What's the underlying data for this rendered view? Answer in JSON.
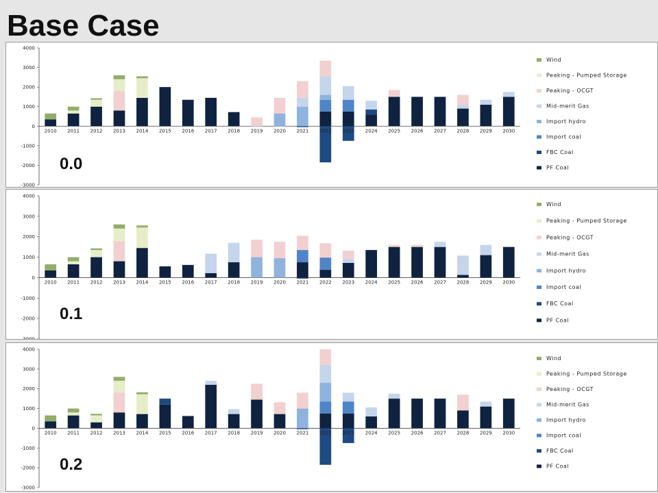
{
  "title": "Base Case",
  "colors": {
    "Wind": "#93ad6a",
    "Peaking - Pumped Storage": "#e6edc8",
    "Peaking - OCGT": "#f2d0d0",
    "Mid-merit Gas": "#c5d5ec",
    "Import hydro": "#8fb3dd",
    "Import coal": "#4f84c9",
    "FBC Coal": "#1e4a83",
    "PF Coal": "#0f2340"
  },
  "chart_data": [
    {
      "type": "bar",
      "label": "0.0",
      "categories": [
        "2010",
        "2011",
        "2012",
        "2013",
        "2014",
        "2015",
        "2016",
        "2017",
        "2018",
        "2019",
        "2020",
        "2021",
        "2022",
        "2023",
        "2024",
        "2025",
        "2026",
        "2027",
        "2028",
        "2029",
        "2030"
      ],
      "ylim": [
        -3000,
        4000
      ],
      "yticks": [
        -3000,
        -2000,
        -1000,
        0,
        1000,
        2000,
        3000,
        4000
      ],
      "legend": [
        "Wind",
        "Peaking - Pumped Storage",
        "Peaking - OCGT",
        "Mid-merit Gas",
        "Import hydro",
        "Import coal",
        "FBC Coal",
        "PF Coal"
      ],
      "series": [
        {
          "name": "PF Coal",
          "values": [
            350,
            650,
            1000,
            800,
            1450,
            2000,
            1350,
            1450,
            720,
            0,
            0,
            0,
            750,
            750,
            600,
            1500,
            1500,
            1500,
            900,
            1100,
            1500
          ]
        },
        {
          "name": "FBC Coal",
          "values": [
            0,
            0,
            0,
            0,
            0,
            0,
            0,
            0,
            0,
            0,
            0,
            -50,
            -1850,
            -750,
            250,
            0,
            0,
            0,
            0,
            0,
            0
          ]
        },
        {
          "name": "Import coal",
          "values": [
            0,
            0,
            0,
            0,
            0,
            0,
            0,
            0,
            0,
            0,
            0,
            0,
            600,
            600,
            0,
            0,
            0,
            0,
            0,
            0,
            0
          ]
        },
        {
          "name": "Import hydro",
          "values": [
            0,
            0,
            0,
            0,
            0,
            0,
            0,
            0,
            0,
            0,
            650,
            1000,
            250,
            0,
            0,
            0,
            0,
            0,
            0,
            0,
            0
          ]
        },
        {
          "name": "Mid-merit Gas",
          "values": [
            0,
            0,
            0,
            0,
            0,
            0,
            0,
            0,
            0,
            0,
            0,
            450,
            950,
            700,
            450,
            0,
            0,
            0,
            200,
            250,
            250
          ]
        },
        {
          "name": "Peaking - OCGT",
          "values": [
            0,
            0,
            0,
            1000,
            0,
            0,
            0,
            0,
            0,
            450,
            800,
            850,
            800,
            0,
            0,
            350,
            0,
            0,
            500,
            0,
            0
          ]
        },
        {
          "name": "Peaking - Pumped Storage",
          "values": [
            0,
            150,
            350,
            600,
            1000,
            0,
            0,
            0,
            0,
            0,
            0,
            0,
            0,
            0,
            0,
            0,
            0,
            0,
            0,
            0,
            0
          ]
        },
        {
          "name": "Wind",
          "values": [
            300,
            200,
            80,
            200,
            100,
            0,
            0,
            0,
            0,
            0,
            0,
            0,
            0,
            0,
            0,
            0,
            0,
            0,
            0,
            0,
            0
          ]
        }
      ]
    },
    {
      "type": "bar",
      "label": "0.1",
      "categories": [
        "2010",
        "2011",
        "2012",
        "2013",
        "2014",
        "2015",
        "2016",
        "2017",
        "2018",
        "2019",
        "2020",
        "2021",
        "2022",
        "2023",
        "2024",
        "2025",
        "2026",
        "2027",
        "2028",
        "2029",
        "2030"
      ],
      "ylim": [
        -3000,
        4000
      ],
      "yticks": [
        -3000,
        -2000,
        -1000,
        0,
        1000,
        2000,
        3000,
        4000
      ],
      "legend": [
        "Wind",
        "Peaking - Pumped Storage",
        "Peaking - OCGT",
        "Mid-merit Gas",
        "Import hydro",
        "Import coal",
        "FBC Coal",
        "PF Coal"
      ],
      "series": [
        {
          "name": "PF Coal",
          "values": [
            350,
            650,
            1000,
            800,
            1450,
            550,
            620,
            220,
            750,
            0,
            0,
            750,
            380,
            720,
            1350,
            1500,
            1500,
            1500,
            130,
            1100,
            1500
          ]
        },
        {
          "name": "FBC Coal",
          "values": [
            0,
            0,
            0,
            0,
            0,
            0,
            0,
            0,
            0,
            0,
            0,
            -50,
            0,
            0,
            0,
            0,
            0,
            0,
            0,
            0,
            0
          ]
        },
        {
          "name": "Import coal",
          "values": [
            0,
            0,
            0,
            0,
            0,
            0,
            0,
            0,
            0,
            0,
            0,
            600,
            600,
            0,
            0,
            0,
            0,
            0,
            0,
            0,
            0
          ]
        },
        {
          "name": "Import hydro",
          "values": [
            0,
            0,
            0,
            0,
            0,
            0,
            0,
            0,
            0,
            1000,
            950,
            0,
            0,
            0,
            0,
            0,
            0,
            0,
            0,
            0,
            0
          ]
        },
        {
          "name": "Mid-merit Gas",
          "values": [
            0,
            0,
            0,
            0,
            0,
            0,
            0,
            950,
            950,
            0,
            0,
            0,
            0,
            200,
            0,
            0,
            0,
            250,
            950,
            500,
            0
          ]
        },
        {
          "name": "Peaking - OCGT",
          "values": [
            0,
            0,
            0,
            1000,
            0,
            0,
            0,
            0,
            0,
            850,
            800,
            700,
            700,
            400,
            0,
            100,
            100,
            0,
            0,
            0,
            0
          ]
        },
        {
          "name": "Peaking - Pumped Storage",
          "values": [
            0,
            150,
            350,
            600,
            1000,
            0,
            0,
            0,
            0,
            0,
            0,
            0,
            0,
            0,
            0,
            0,
            0,
            0,
            0,
            0,
            0
          ]
        },
        {
          "name": "Wind",
          "values": [
            300,
            200,
            80,
            200,
            100,
            0,
            0,
            0,
            0,
            0,
            0,
            0,
            0,
            0,
            0,
            0,
            0,
            0,
            0,
            0,
            0
          ]
        }
      ]
    },
    {
      "type": "bar",
      "label": "0.2",
      "categories": [
        "2010",
        "2011",
        "2012",
        "2013",
        "2014",
        "2015",
        "2016",
        "2017",
        "2018",
        "2019",
        "2020",
        "2021",
        "2022",
        "2023",
        "2024",
        "2025",
        "2026",
        "2027",
        "2028",
        "2029",
        "2030"
      ],
      "ylim": [
        -3000,
        4000
      ],
      "yticks": [
        -3000,
        -2000,
        -1000,
        0,
        1000,
        2000,
        3000,
        4000
      ],
      "legend": [
        "Wind",
        "Peaking - Pumped Storage",
        "Peaking - OCGT",
        "Mid-merit Gas",
        "Import hydro",
        "Import coal",
        "FBC Coal",
        "PF Coal"
      ],
      "series": [
        {
          "name": "PF Coal",
          "values": [
            350,
            650,
            300,
            800,
            720,
            1200,
            620,
            2200,
            720,
            1450,
            720,
            0,
            750,
            750,
            600,
            1500,
            1500,
            1500,
            900,
            1100,
            1500
          ]
        },
        {
          "name": "FBC Coal",
          "values": [
            0,
            0,
            0,
            0,
            0,
            300,
            0,
            0,
            0,
            0,
            0,
            -50,
            -1850,
            -750,
            0,
            0,
            0,
            0,
            0,
            0,
            0
          ]
        },
        {
          "name": "Import coal",
          "values": [
            0,
            0,
            0,
            0,
            0,
            0,
            0,
            0,
            0,
            0,
            0,
            0,
            600,
            600,
            0,
            0,
            0,
            0,
            0,
            0,
            0
          ]
        },
        {
          "name": "Import hydro",
          "values": [
            0,
            0,
            0,
            0,
            0,
            0,
            0,
            0,
            0,
            0,
            0,
            1000,
            950,
            0,
            0,
            0,
            0,
            0,
            0,
            0,
            0
          ]
        },
        {
          "name": "Mid-merit Gas",
          "values": [
            0,
            0,
            0,
            0,
            0,
            0,
            0,
            200,
            250,
            0,
            0,
            0,
            900,
            450,
            450,
            250,
            0,
            0,
            0,
            250,
            0
          ]
        },
        {
          "name": "Peaking - OCGT",
          "values": [
            0,
            0,
            0,
            1000,
            0,
            0,
            0,
            0,
            0,
            800,
            600,
            800,
            800,
            0,
            0,
            0,
            0,
            0,
            800,
            0,
            0
          ]
        },
        {
          "name": "Peaking - Pumped Storage",
          "values": [
            0,
            150,
            350,
            600,
            1000,
            0,
            0,
            0,
            0,
            0,
            0,
            0,
            0,
            0,
            0,
            0,
            0,
            0,
            0,
            0,
            0
          ]
        },
        {
          "name": "Wind",
          "values": [
            300,
            200,
            80,
            200,
            100,
            0,
            0,
            0,
            0,
            0,
            0,
            0,
            0,
            0,
            0,
            0,
            0,
            0,
            0,
            0,
            0
          ]
        }
      ]
    }
  ]
}
